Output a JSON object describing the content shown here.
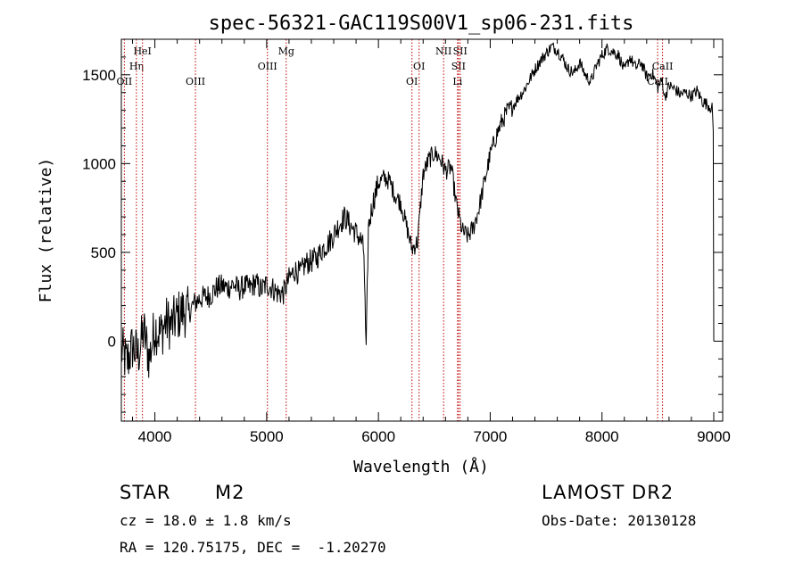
{
  "chart_data": {
    "type": "line",
    "title": "spec-56321-GAC119S00V1_sp06-231.fits",
    "xlabel": "Wavelength (Å)",
    "ylabel": "Flux (relative)",
    "xlim": [
      3700,
      9080
    ],
    "ylim": [
      -450,
      1700
    ],
    "xticks": [
      4000,
      5000,
      6000,
      7000,
      8000,
      9000
    ],
    "yticks": [
      0,
      500,
      1000,
      1500
    ],
    "x_minor_step": 200,
    "y_minor_step": 100,
    "series": [
      {
        "name": "flux",
        "color": "#000000",
        "x": [
          3700,
          3750,
          3800,
          3850,
          3900,
          3950,
          4000,
          4050,
          4100,
          4150,
          4200,
          4250,
          4300,
          4350,
          4400,
          4450,
          4500,
          4550,
          4600,
          4650,
          4700,
          4750,
          4800,
          4850,
          4900,
          4950,
          5000,
          5050,
          5100,
          5150,
          5200,
          5250,
          5300,
          5350,
          5400,
          5450,
          5500,
          5550,
          5600,
          5650,
          5700,
          5750,
          5800,
          5850,
          5870,
          5890,
          5910,
          5950,
          6000,
          6050,
          6100,
          6150,
          6200,
          6250,
          6300,
          6350,
          6400,
          6450,
          6500,
          6550,
          6600,
          6650,
          6700,
          6750,
          6800,
          6850,
          6900,
          6950,
          7000,
          7050,
          7100,
          7150,
          7200,
          7250,
          7300,
          7350,
          7400,
          7450,
          7500,
          7550,
          7600,
          7650,
          7700,
          7750,
          7800,
          7850,
          7900,
          7950,
          8000,
          8050,
          8100,
          8150,
          8200,
          8250,
          8300,
          8350,
          8400,
          8450,
          8500,
          8540,
          8560,
          8600,
          8650,
          8700,
          8750,
          8800,
          8850,
          8900,
          8950,
          8985,
          8995,
          9000
        ],
        "y": [
          -50,
          -120,
          -30,
          -80,
          60,
          -100,
          80,
          40,
          110,
          90,
          140,
          170,
          160,
          210,
          240,
          250,
          260,
          300,
          310,
          300,
          320,
          290,
          310,
          300,
          330,
          290,
          320,
          300,
          270,
          270,
          350,
          400,
          380,
          440,
          450,
          470,
          520,
          550,
          600,
          660,
          700,
          650,
          610,
          560,
          500,
          -80,
          640,
          780,
          890,
          920,
          900,
          820,
          780,
          650,
          520,
          560,
          940,
          1020,
          1060,
          1030,
          960,
          980,
          760,
          620,
          590,
          640,
          750,
          900,
          1050,
          1150,
          1230,
          1290,
          1320,
          1370,
          1410,
          1470,
          1530,
          1580,
          1620,
          1660,
          1640,
          1590,
          1530,
          1510,
          1570,
          1500,
          1460,
          1550,
          1610,
          1650,
          1630,
          1610,
          1520,
          1600,
          1540,
          1570,
          1490,
          1510,
          1430,
          1470,
          1370,
          1440,
          1420,
          1390,
          1400,
          1380,
          1410,
          1350,
          1330,
          1310,
          1200,
          0
        ]
      }
    ],
    "lines": [
      {
        "label": "OII",
        "wavelength": 3727,
        "row": 3
      },
      {
        "label": "Hη",
        "wavelength": 3835,
        "row": 2
      },
      {
        "label": "HeI",
        "wavelength": 3889,
        "row": 1
      },
      {
        "label": "OIII",
        "wavelength": 4363,
        "row": 3
      },
      {
        "label": "OIII",
        "wavelength": 5007,
        "row": 2
      },
      {
        "label": "Mg",
        "wavelength": 5175,
        "row": 1
      },
      {
        "label": "OI",
        "wavelength": 6300,
        "row": 3
      },
      {
        "label": "OI",
        "wavelength": 6364,
        "row": 2
      },
      {
        "label": "NII",
        "wavelength": 6583,
        "row": 1
      },
      {
        "label": "SII",
        "wavelength": 6716,
        "row": 2
      },
      {
        "label": "SII",
        "wavelength": 6731,
        "row": 1
      },
      {
        "label": "Li",
        "wavelength": 6708,
        "row": 3
      },
      {
        "label": "CaII",
        "wavelength": 8498,
        "row": 3
      },
      {
        "label": "CaII",
        "wavelength": 8542,
        "row": 2
      }
    ],
    "line_color": "#c00000"
  },
  "info": {
    "class": "STAR",
    "subclass": "M2",
    "survey": "LAMOST DR2",
    "cz": "cz = 18.0 ± 1.8 km/s",
    "obs_date": "Obs-Date: 20130128",
    "coords": "RA = 120.75175, DEC =  -1.20270"
  }
}
